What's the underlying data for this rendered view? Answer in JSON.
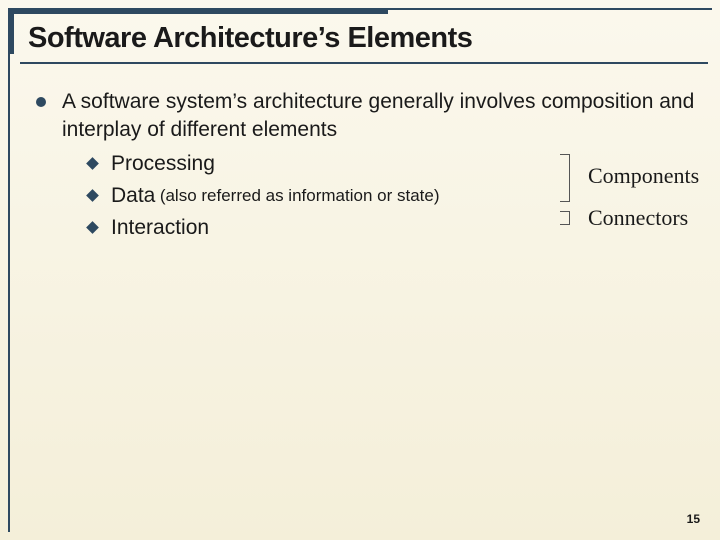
{
  "slide": {
    "title": "Software Architecture’s Elements",
    "page_number": "15",
    "colors": {
      "border": "#2e4960",
      "bg_top": "#fbf8ed",
      "bg_bottom": "#f4efd9",
      "text": "#1a1a1a"
    },
    "typography": {
      "title_fontsize": 29,
      "body_fontsize": 21,
      "small_fontsize": 17,
      "annotation_fontsize": 22,
      "annotation_font": "Times New Roman",
      "body_font": "Verdana"
    },
    "main_bullet": "A software system’s architecture generally involves composition and interplay of different elements",
    "sub_bullets": [
      {
        "text": "Processing",
        "note": ""
      },
      {
        "text": "Data",
        "note": "(also referred as information or state)"
      },
      {
        "text": "Interaction",
        "note": ""
      }
    ],
    "annotations": {
      "components": "Components",
      "connectors": "Connectors"
    }
  }
}
